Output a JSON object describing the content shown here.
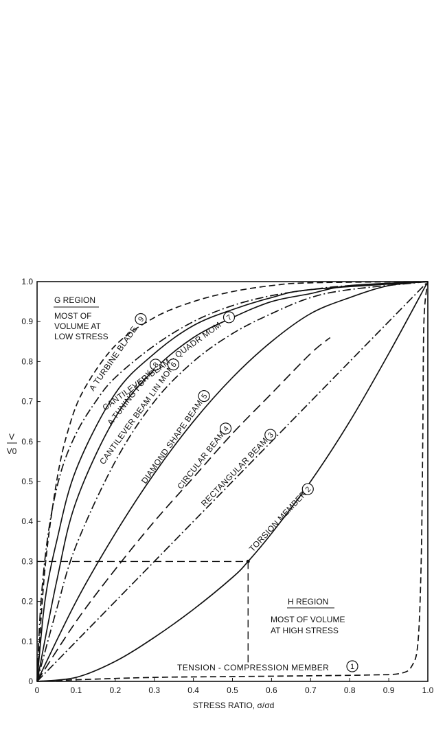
{
  "chart_data": {
    "type": "line",
    "title": "",
    "xlabel": "STRESS RATIO, σ/σd",
    "ylabel_top": "V",
    "ylabel_bottom": "V0",
    "xlim": [
      0,
      1.0
    ],
    "ylim": [
      0,
      1.0
    ],
    "x_ticks": [
      "0",
      "0.1",
      "0.2",
      "0.3",
      "0.4",
      "0.5",
      "0.6",
      "0.7",
      "0.8",
      "0.9",
      "1.0"
    ],
    "y_ticks": [
      "0",
      "0.1",
      "0.2",
      "0.3",
      "0.4",
      "0.5",
      "0.6",
      "0.7",
      "0.8",
      "0.9",
      "1.0"
    ],
    "grid": false,
    "series": [
      {
        "name": "TENSION - COMPRESSION MEMBER",
        "number": "1",
        "style": "dashed",
        "points": [
          [
            0,
            0
          ],
          [
            0.1,
            0.004
          ],
          [
            0.3,
            0.01
          ],
          [
            0.5,
            0.012
          ],
          [
            0.7,
            0.014
          ],
          [
            0.85,
            0.016
          ],
          [
            0.93,
            0.02
          ],
          [
            0.96,
            0.04
          ],
          [
            0.975,
            0.1
          ],
          [
            0.983,
            0.3
          ],
          [
            0.987,
            0.6
          ],
          [
            0.99,
            0.9
          ],
          [
            1.0,
            1.0
          ]
        ]
      },
      {
        "name": "TORSION MEMBER",
        "number": "2",
        "style": "solid",
        "points": [
          [
            0,
            0
          ],
          [
            0.1,
            0.01
          ],
          [
            0.2,
            0.05
          ],
          [
            0.3,
            0.11
          ],
          [
            0.4,
            0.18
          ],
          [
            0.5,
            0.26
          ],
          [
            0.54,
            0.3
          ],
          [
            0.6,
            0.37
          ],
          [
            0.7,
            0.5
          ],
          [
            0.8,
            0.65
          ],
          [
            0.9,
            0.82
          ],
          [
            1.0,
            1.0
          ]
        ]
      },
      {
        "name": "RECTANGULAR BEAM",
        "number": "3",
        "style": "dash-dot",
        "points": [
          [
            0,
            0
          ],
          [
            1.0,
            1.0
          ]
        ]
      },
      {
        "name": "CIRCULAR BEAM",
        "number": "4",
        "style": "long-dashed",
        "points": [
          [
            0,
            0
          ],
          [
            0.1,
            0.15
          ],
          [
            0.2,
            0.28
          ],
          [
            0.3,
            0.4
          ],
          [
            0.4,
            0.51
          ],
          [
            0.5,
            0.62
          ],
          [
            0.6,
            0.72
          ],
          [
            0.7,
            0.82
          ],
          [
            0.75,
            0.86
          ]
        ]
      },
      {
        "name": "DIAMOND SHAPE BEAM",
        "number": "5",
        "style": "solid",
        "points": [
          [
            0,
            0
          ],
          [
            0.1,
            0.2
          ],
          [
            0.2,
            0.37
          ],
          [
            0.3,
            0.52
          ],
          [
            0.4,
            0.65
          ],
          [
            0.5,
            0.76
          ],
          [
            0.6,
            0.85
          ],
          [
            0.7,
            0.92
          ],
          [
            0.8,
            0.96
          ],
          [
            0.9,
            0.99
          ],
          [
            1.0,
            1.0
          ]
        ]
      },
      {
        "name": "CANTILEVER BEAM LIN MOM",
        "number": "6",
        "style": "dash-dot",
        "points": [
          [
            0,
            0
          ],
          [
            0.05,
            0.18
          ],
          [
            0.1,
            0.34
          ],
          [
            0.2,
            0.55
          ],
          [
            0.3,
            0.7
          ],
          [
            0.4,
            0.8
          ],
          [
            0.5,
            0.87
          ],
          [
            0.6,
            0.92
          ],
          [
            0.7,
            0.96
          ],
          [
            0.8,
            0.98
          ],
          [
            1.0,
            1.0
          ]
        ]
      },
      {
        "name": "A TUNING FORK",
        "number": "8",
        "style": "solid",
        "points": [
          [
            0,
            0
          ],
          [
            0.05,
            0.25
          ],
          [
            0.1,
            0.45
          ],
          [
            0.2,
            0.66
          ],
          [
            0.3,
            0.78
          ],
          [
            0.4,
            0.86
          ],
          [
            0.5,
            0.91
          ],
          [
            0.6,
            0.95
          ],
          [
            0.7,
            0.97
          ],
          [
            0.8,
            0.99
          ],
          [
            1.0,
            1.0
          ]
        ]
      },
      {
        "name": "CANTILEVER BEAM - QUADR MOM",
        "number": "7",
        "style": "solid",
        "points": [
          [
            0,
            0
          ],
          [
            0.02,
            0.2
          ],
          [
            0.05,
            0.35
          ],
          [
            0.1,
            0.53
          ],
          [
            0.2,
            0.72
          ],
          [
            0.3,
            0.82
          ],
          [
            0.4,
            0.89
          ],
          [
            0.5,
            0.93
          ],
          [
            0.6,
            0.96
          ],
          [
            0.7,
            0.98
          ],
          [
            1.0,
            1.0
          ]
        ]
      },
      {
        "name": "A TURBINE BLADE",
        "number": "9",
        "style": "dashed",
        "points": [
          [
            0,
            0
          ],
          [
            0.02,
            0.28
          ],
          [
            0.05,
            0.5
          ],
          [
            0.08,
            0.63
          ],
          [
            0.12,
            0.73
          ],
          [
            0.2,
            0.84
          ],
          [
            0.3,
            0.91
          ],
          [
            0.4,
            0.95
          ],
          [
            0.5,
            0.975
          ],
          [
            0.6,
            0.99
          ],
          [
            0.7,
            0.997
          ],
          [
            1.0,
            1.0
          ]
        ]
      },
      {
        "name": "",
        "number": "",
        "style": "dash-dot",
        "points": [
          [
            0,
            0
          ],
          [
            0.01,
            0.2
          ],
          [
            0.03,
            0.38
          ],
          [
            0.06,
            0.52
          ],
          [
            0.1,
            0.62
          ],
          [
            0.15,
            0.7
          ],
          [
            0.2,
            0.76
          ],
          [
            0.3,
            0.84
          ],
          [
            0.4,
            0.9
          ],
          [
            0.5,
            0.94
          ],
          [
            0.6,
            0.965
          ],
          [
            0.7,
            0.98
          ],
          [
            0.8,
            0.99
          ],
          [
            1.0,
            1.0
          ]
        ]
      }
    ],
    "reference_point": {
      "x": 0.54,
      "y": 0.3
    },
    "annotations": {
      "g_region": [
        "G REGION",
        "MOST OF",
        "VOLUME AT",
        "LOW STRESS"
      ],
      "h_region": [
        "H REGION",
        "MOST OF VOLUME",
        "AT HIGH STRESS"
      ]
    }
  }
}
